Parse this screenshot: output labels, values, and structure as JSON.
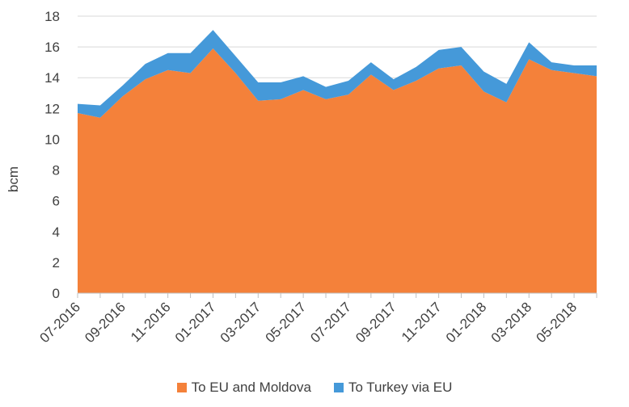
{
  "chart_data": {
    "type": "area",
    "stacked": true,
    "ylabel": "bcm",
    "xlabel": "",
    "ylim": [
      0,
      18
    ],
    "yticks": [
      "0",
      "2",
      "4",
      "6",
      "8",
      "10",
      "12",
      "14",
      "16",
      "18"
    ],
    "x": [
      "07-2016",
      "08-2016",
      "09-2016",
      "10-2016",
      "11-2016",
      "12-2016",
      "01-2017",
      "02-2017",
      "03-2017",
      "04-2017",
      "05-2017",
      "06-2017",
      "07-2017",
      "08-2017",
      "09-2017",
      "10-2017",
      "11-2017",
      "12-2017",
      "01-2018",
      "02-2018",
      "03-2018",
      "04-2018",
      "05-2018",
      "06-2018"
    ],
    "xtick_labels": [
      "07-2016",
      "09-2016",
      "11-2016",
      "01-2017",
      "03-2017",
      "05-2017",
      "07-2017",
      "09-2017",
      "11-2017",
      "01-2018",
      "03-2018",
      "05-2018"
    ],
    "series": [
      {
        "name": "To EU and Moldova",
        "color": "#F4813A",
        "values": [
          11.7,
          11.4,
          12.8,
          13.9,
          14.5,
          14.3,
          15.9,
          14.3,
          12.5,
          12.6,
          13.2,
          12.6,
          12.9,
          14.2,
          13.2,
          13.8,
          14.6,
          14.8,
          13.1,
          12.4,
          15.2,
          14.5,
          14.3,
          14.1
        ]
      },
      {
        "name": "To Turkey via EU",
        "color": "#4599D9",
        "values": [
          0.6,
          0.8,
          0.7,
          1.0,
          1.1,
          1.3,
          1.2,
          1.1,
          1.2,
          1.1,
          0.9,
          0.8,
          0.9,
          0.8,
          0.7,
          0.9,
          1.2,
          1.2,
          1.3,
          1.2,
          1.1,
          0.5,
          0.5,
          0.7
        ]
      }
    ],
    "grid": "horizontal",
    "legend_position": "bottom"
  }
}
